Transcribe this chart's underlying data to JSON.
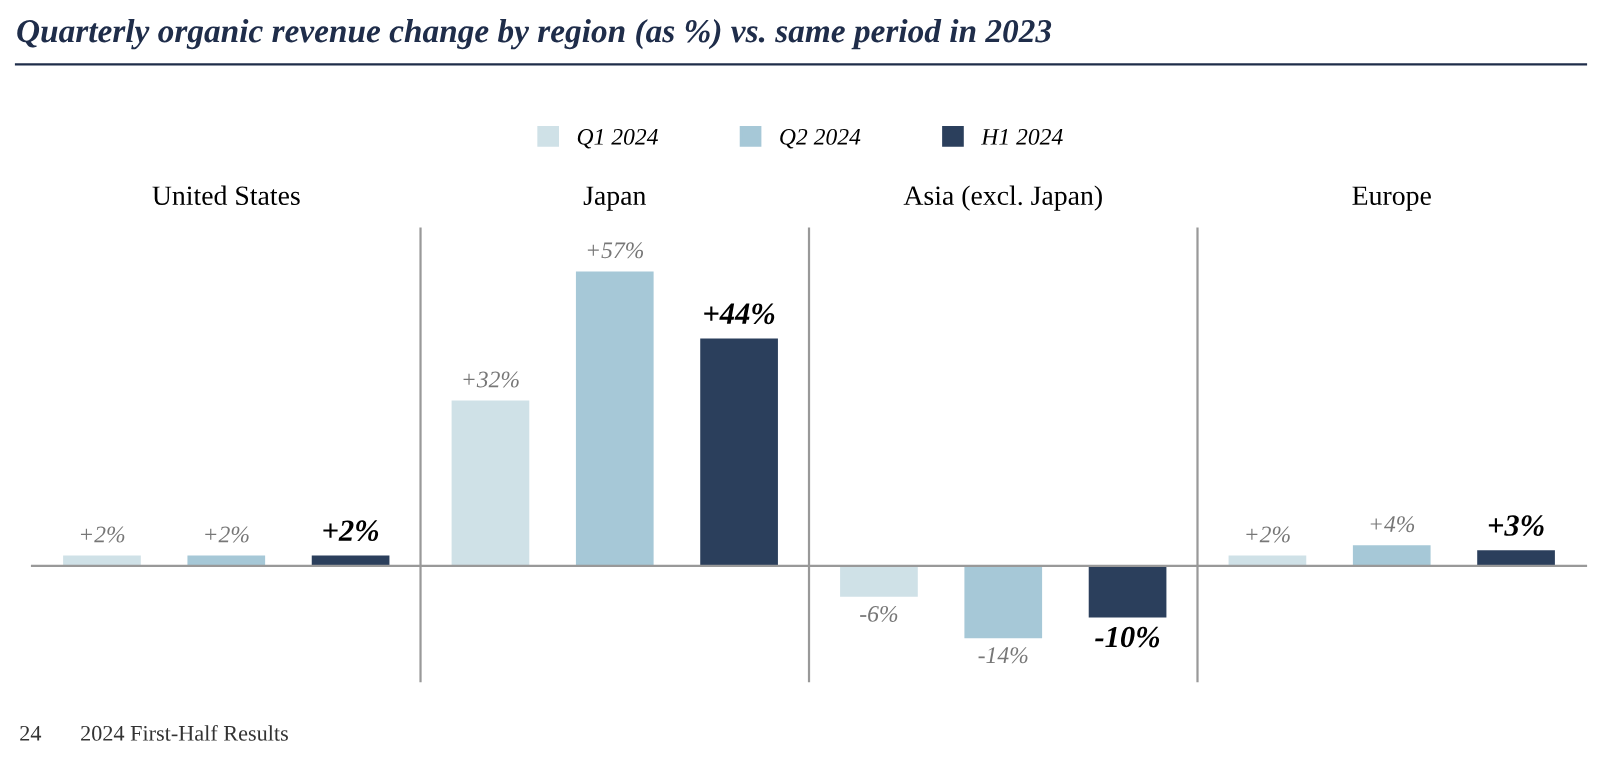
{
  "chart_data": [
    {
      "type": "other",
      "title": "Quarterly organic revenue change by region (as %) vs. same period in 2023",
      "annotations": [
        "24",
        "2024 First-Half Results"
      ]
    },
    {
      "type": "bar",
      "categories": [
        "United States",
        "Japan",
        "Asia (excl. Japan)",
        "Europe"
      ],
      "legend": "top",
      "series": [
        {
          "name": "Q1 2024",
          "color": "#cfe1e7",
          "values": [
            2,
            32,
            -6,
            2
          ],
          "value_labels": [
            "+2%",
            "+32%",
            "-6%",
            "+2%"
          ]
        },
        {
          "name": "Q2 2024",
          "color": "#a6c8d7",
          "values": [
            2,
            57,
            -14,
            4
          ],
          "value_labels": [
            "+2%",
            "+57%",
            "-14%",
            "+4%"
          ]
        },
        {
          "name": "H1 2024",
          "color": "#2b3f5c",
          "values": [
            2,
            44,
            -10,
            3
          ],
          "value_labels": [
            "+2%",
            "+44%",
            "-10%",
            "+3%"
          ]
        }
      ]
    }
  ]
}
